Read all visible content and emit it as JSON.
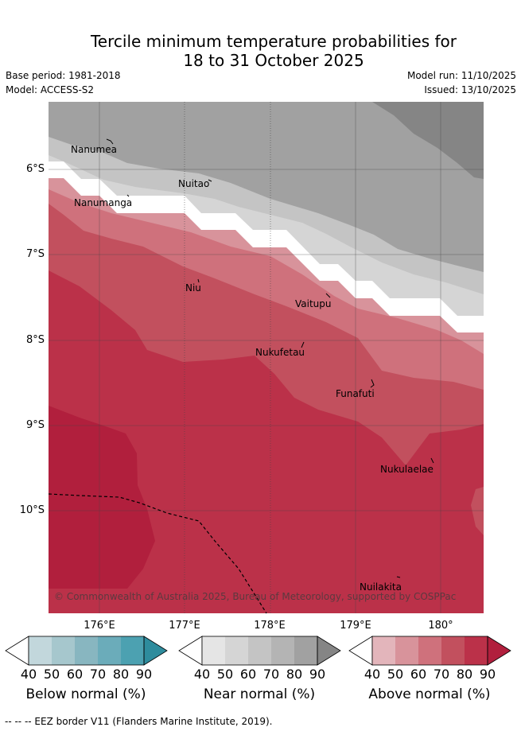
{
  "title": {
    "line1": "Tercile minimum temperature probabilities for",
    "line2": "18 to 31 October 2025"
  },
  "meta": {
    "base_period": "Base period: 1981-2018",
    "model": "Model: ACCESS-S2",
    "model_run": "Model run: 11/10/2025",
    "issued": "Issued: 13/10/2025"
  },
  "map": {
    "lat_labels": [
      "6°S",
      "7°S",
      "8°S",
      "9°S",
      "10°S"
    ],
    "lon_labels": [
      "176°E",
      "177°E",
      "178°E",
      "179°E",
      "180°"
    ],
    "places": [
      "Nanumea",
      "Nuitao",
      "Nanumanga",
      "Niu",
      "Vaitupu",
      "Nukufetau",
      "Funafuti",
      "Nukulaelae",
      "Nuilakita"
    ],
    "copyright": "© Commonwealth of Australia 2025, Bureau of Meteorology, supported by COSPPac",
    "colors": {
      "near_60": "#d5d5d5",
      "near_70": "#c4c4c4",
      "near_80": "#a1a1a1",
      "near_90": "#858585",
      "above_50": "#d8939b",
      "above_60": "#cf717c",
      "above_70": "#c2505e",
      "above_80": "#bb3149",
      "above_90": "#b11f3d"
    }
  },
  "colorbars": [
    {
      "title": "Below normal (%)",
      "ticks": [
        "40",
        "50",
        "60",
        "70",
        "80",
        "90"
      ],
      "colors": [
        "#c2d7dc",
        "#a6c7cd",
        "#88b6c0",
        "#6bacba",
        "#4ca1b1",
        "#2e8c9d"
      ]
    },
    {
      "title": "Near normal (%)",
      "ticks": [
        "40",
        "50",
        "60",
        "70",
        "80",
        "90"
      ],
      "colors": [
        "#e5e5e5",
        "#d5d5d5",
        "#c4c4c4",
        "#b4b4b4",
        "#a1a1a1",
        "#858585"
      ]
    },
    {
      "title": "Above normal (%)",
      "ticks": [
        "40",
        "50",
        "60",
        "70",
        "80",
        "90"
      ],
      "colors": [
        "#e3b5bb",
        "#d8939b",
        "#cf717c",
        "#c2505e",
        "#bb3149",
        "#b11f3d"
      ]
    }
  ],
  "footnote": "--  --  -- EEZ border V11 (Flanders Marine Institute, 2019)."
}
